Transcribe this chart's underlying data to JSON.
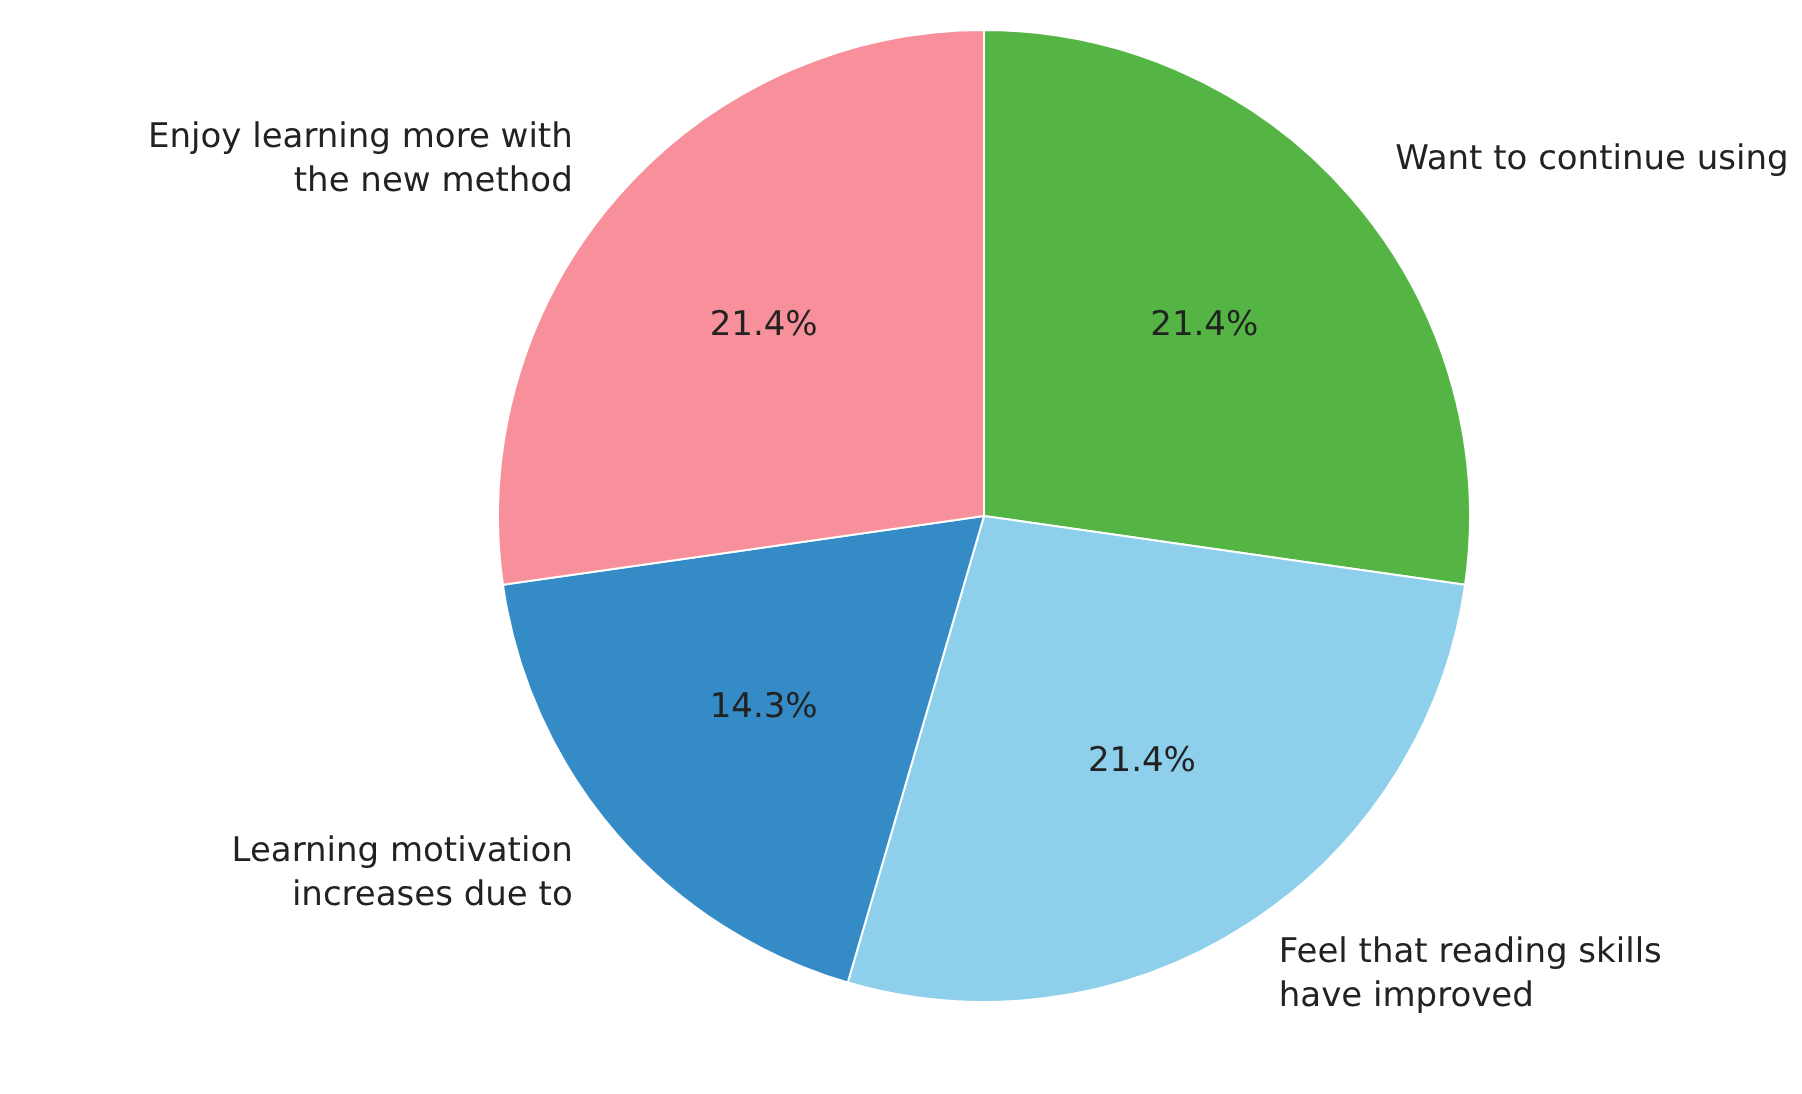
{
  "chart_data": {
    "type": "pie",
    "categories": [
      "Want to continue using",
      "Feel that reading skills have improved",
      "Learning motivation increases due to",
      "Enjoy learning more with the new method"
    ],
    "values": [
      21.4,
      21.4,
      14.3,
      21.4
    ],
    "colors": [
      "#55b544",
      "#8ecfec",
      "#358bc6",
      "#f7909a"
    ],
    "value_labels": [
      "21.4%",
      "21.4%",
      "14.3%",
      "21.4%"
    ],
    "legend": false
  }
}
